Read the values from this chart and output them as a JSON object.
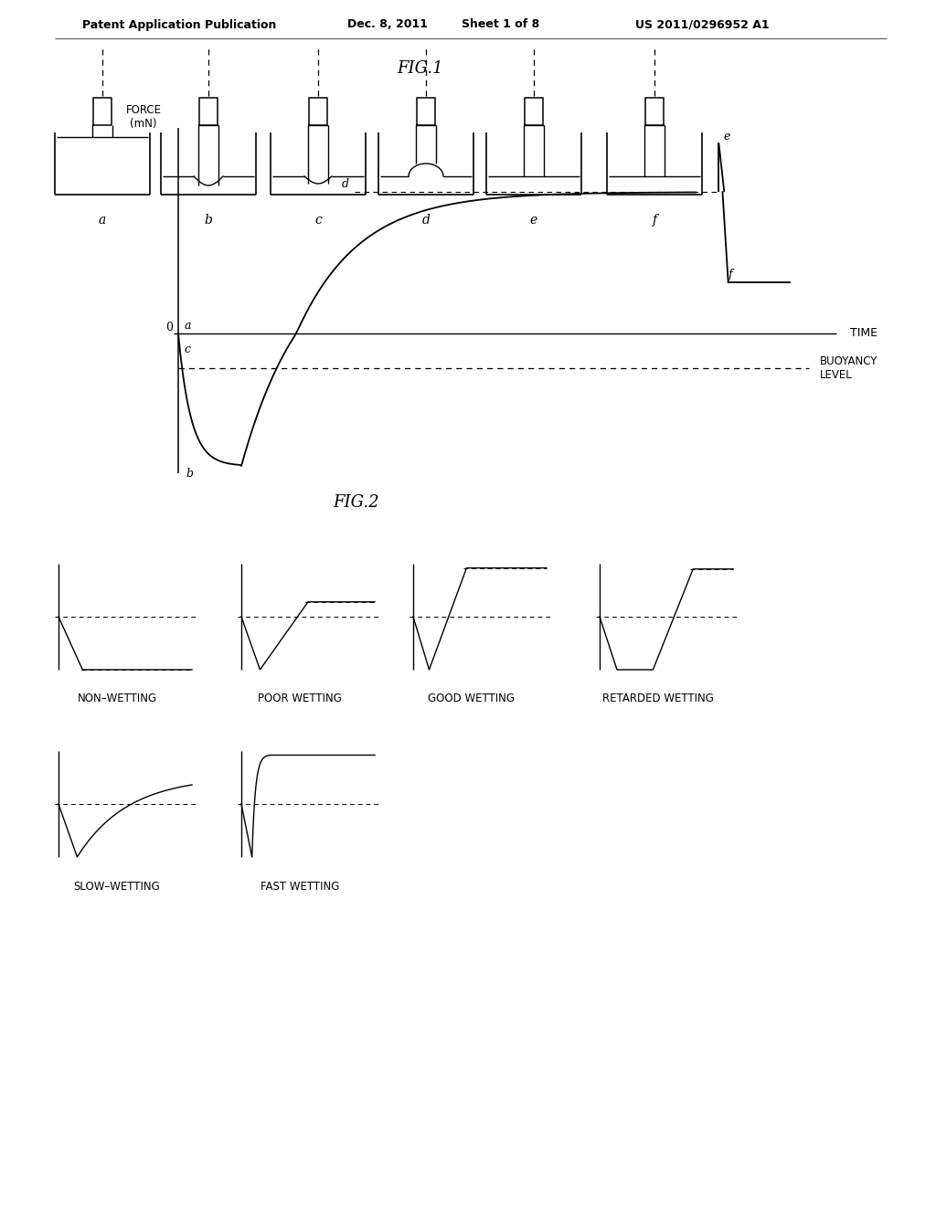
{
  "bg_color": "#ffffff",
  "header_line1": "Patent Application Publication",
  "header_date": "Dec. 8, 2011",
  "header_sheet": "Sheet 1 of 8",
  "header_patent": "US 2011/0296952 A1",
  "fig1_title": "FIG.1",
  "fig2_title": "FIG.2",
  "fig1_labels": [
    "a",
    "b",
    "c",
    "d",
    "e",
    "f"
  ],
  "graph_ylabel": "FORCE\n(mN)",
  "graph_xlabel_time": "TIME",
  "graph_label_buoyancy": "BUOYANCY\nLEVEL",
  "wetting_labels": [
    "NON–WETTING",
    "POOR WETTING",
    "GOOD WETTING",
    "RETARDED WETTING",
    "SLOW–WETTING",
    "FAST WETTING"
  ]
}
